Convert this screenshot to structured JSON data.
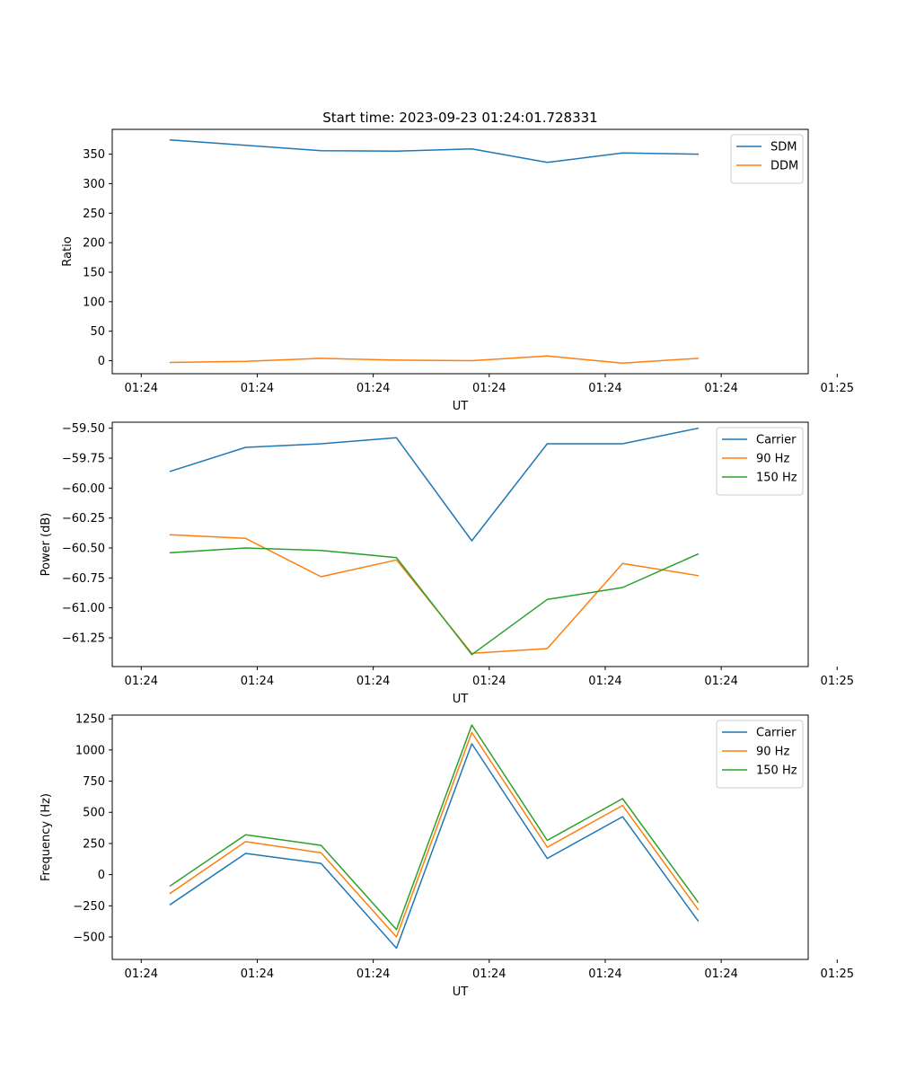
{
  "title": "Start time: 2023-09-23 01:24:01.728331",
  "colors": {
    "blue": "#1f77b4",
    "orange": "#ff7f0e",
    "green": "#2ca02c"
  },
  "chart_data": [
    {
      "type": "line",
      "title": "Start time: 2023-09-23 01:24:01.728331",
      "xlabel": "UT",
      "ylabel": "Ratio",
      "xlim": [
        0,
        12
      ],
      "ylim": [
        -22,
        392
      ],
      "x_ticks": [
        0.5,
        2.5,
        4.5,
        6.5,
        8.5,
        10.5,
        12.5
      ],
      "x_tick_labels": [
        "01:24",
        "01:24",
        "01:24",
        "01:24",
        "01:24",
        "01:24",
        "01:25"
      ],
      "y_ticks": [
        0,
        50,
        100,
        150,
        200,
        250,
        300,
        350
      ],
      "y_tick_labels": [
        "0",
        "50",
        "100",
        "150",
        "200",
        "250",
        "300",
        "350"
      ],
      "x": [
        1,
        2.3,
        3.6,
        4.9,
        6.2,
        7.5,
        8.8,
        10.1
      ],
      "legend": "top-right",
      "series": [
        {
          "name": "SDM",
          "color": "#1f77b4",
          "values": [
            374,
            365,
            356,
            355,
            359,
            336,
            352,
            350
          ]
        },
        {
          "name": "DDM",
          "color": "#ff7f0e",
          "values": [
            -3,
            -1,
            4,
            1,
            0,
            8,
            -4,
            4
          ]
        }
      ]
    },
    {
      "type": "line",
      "title": "",
      "xlabel": "UT",
      "ylabel": "Power (dB)",
      "xlim": [
        0,
        12
      ],
      "ylim": [
        -61.49,
        -59.45
      ],
      "x_ticks": [
        0.5,
        2.5,
        4.5,
        6.5,
        8.5,
        10.5,
        12.5
      ],
      "x_tick_labels": [
        "01:24",
        "01:24",
        "01:24",
        "01:24",
        "01:24",
        "01:24",
        "01:25"
      ],
      "y_ticks": [
        -61.25,
        -61.0,
        -60.75,
        -60.5,
        -60.25,
        -60.0,
        -59.75,
        -59.5
      ],
      "y_tick_labels": [
        "−61.25",
        "−61.00",
        "−60.75",
        "−60.50",
        "−60.25",
        "−60.00",
        "−59.75",
        "−59.50"
      ],
      "x": [
        1,
        2.3,
        3.6,
        4.9,
        6.2,
        7.5,
        8.8,
        10.1
      ],
      "legend": "top-right",
      "series": [
        {
          "name": "Carrier",
          "color": "#1f77b4",
          "values": [
            -59.86,
            -59.66,
            -59.63,
            -59.58,
            -60.44,
            -59.63,
            -59.63,
            -59.5
          ]
        },
        {
          "name": "90 Hz",
          "color": "#ff7f0e",
          "values": [
            -60.39,
            -60.42,
            -60.74,
            -60.6,
            -61.38,
            -61.34,
            -60.63,
            -60.73
          ]
        },
        {
          "name": "150 Hz",
          "color": "#2ca02c",
          "values": [
            -60.54,
            -60.5,
            -60.52,
            -60.58,
            -61.39,
            -60.93,
            -60.83,
            -60.55
          ]
        }
      ]
    },
    {
      "type": "line",
      "title": "",
      "xlabel": "UT",
      "ylabel": "Frequency (Hz)",
      "xlim": [
        0,
        12
      ],
      "ylim": [
        -680,
        1280
      ],
      "x_ticks": [
        0.5,
        2.5,
        4.5,
        6.5,
        8.5,
        10.5,
        12.5
      ],
      "x_tick_labels": [
        "01:24",
        "01:24",
        "01:24",
        "01:24",
        "01:24",
        "01:24",
        "01:25"
      ],
      "y_ticks": [
        -500,
        -250,
        0,
        250,
        500,
        750,
        1000,
        1250
      ],
      "y_tick_labels": [
        "−500",
        "−250",
        "0",
        "250",
        "500",
        "750",
        "1000",
        "1250"
      ],
      "x": [
        1,
        2.3,
        3.6,
        4.9,
        6.2,
        7.5,
        8.8,
        10.1
      ],
      "legend": "top-right",
      "series": [
        {
          "name": "Carrier",
          "color": "#1f77b4",
          "values": [
            -240,
            170,
            90,
            -590,
            1050,
            130,
            465,
            -370
          ]
        },
        {
          "name": "90 Hz",
          "color": "#ff7f0e",
          "values": [
            -150,
            265,
            175,
            -500,
            1140,
            220,
            555,
            -280
          ]
        },
        {
          "name": "150 Hz",
          "color": "#2ca02c",
          "values": [
            -90,
            320,
            235,
            -440,
            1200,
            275,
            610,
            -220
          ]
        }
      ]
    }
  ]
}
